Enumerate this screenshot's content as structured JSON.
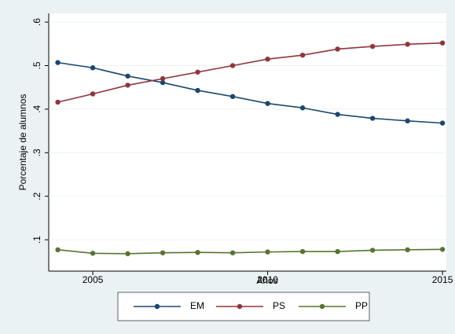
{
  "chart_data": {
    "type": "line",
    "x_label": "Años",
    "y_label": "Porcentaje de alumnos",
    "x": [
      2004,
      2005,
      2006,
      2007,
      2008,
      2009,
      2010,
      2011,
      2012,
      2013,
      2014,
      2015
    ],
    "series": [
      {
        "name": "EM",
        "color": "#1a476f",
        "values": [
          0.507,
          0.495,
          0.476,
          0.461,
          0.443,
          0.429,
          0.413,
          0.403,
          0.388,
          0.379,
          0.373,
          0.368
        ]
      },
      {
        "name": "PS",
        "color": "#90353b",
        "values": [
          0.416,
          0.435,
          0.455,
          0.47,
          0.485,
          0.5,
          0.515,
          0.524,
          0.538,
          0.544,
          0.549,
          0.552
        ]
      },
      {
        "name": "PP",
        "color": "#55752f",
        "values": [
          0.077,
          0.069,
          0.068,
          0.07,
          0.071,
          0.07,
          0.072,
          0.073,
          0.073,
          0.076,
          0.077,
          0.078
        ]
      }
    ],
    "xlim": [
      2003.74,
      2015.11
    ],
    "xticks": [
      2005,
      2010,
      2015
    ],
    "ylim": [
      0.028,
      0.62
    ],
    "yticks": [
      {
        "value": 0.1,
        "label": ".1"
      },
      {
        "value": 0.2,
        "label": ".2"
      },
      {
        "value": 0.3,
        "label": ".3"
      },
      {
        "value": 0.4,
        "label": ".4"
      },
      {
        "value": 0.5,
        "label": ".5"
      },
      {
        "value": 0.6,
        "label": ".6"
      }
    ],
    "grid": true,
    "legend": "bottom"
  }
}
